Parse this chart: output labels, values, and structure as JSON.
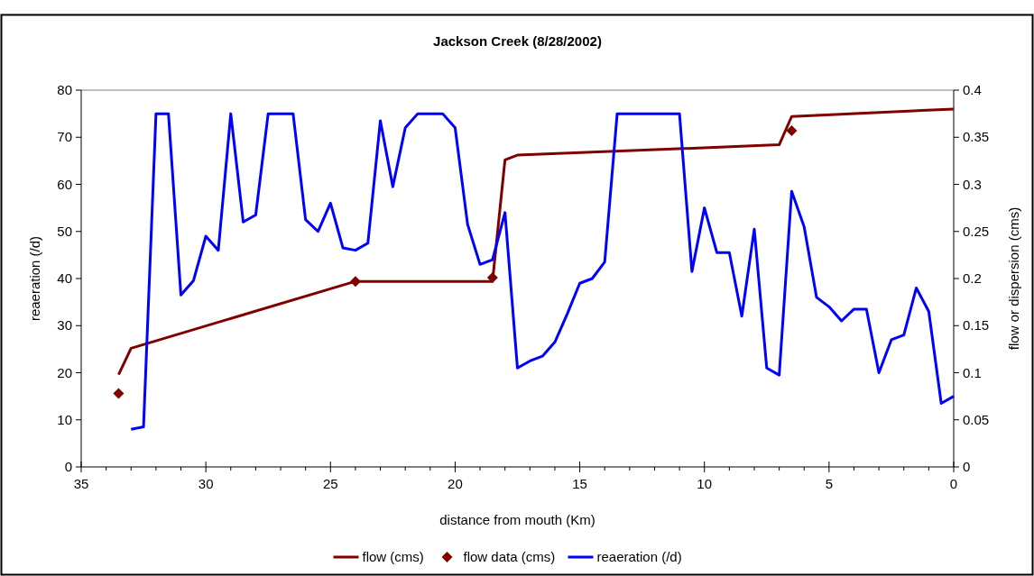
{
  "chart_data": {
    "type": "line",
    "title": "Jackson Creek (8/28/2002)",
    "xlabel": "distance from mouth (Km)",
    "ylabel": "reaeration (/d)",
    "y2label": "flow or dispersion (cms)",
    "xlim": [
      35,
      0
    ],
    "xticks": [
      35,
      {
        "value": 34,
        "label": null
      },
      {
        "value": 33,
        "label": null
      },
      {
        "value": 32,
        "label": null
      },
      {
        "value": 31,
        "label": null
      },
      30,
      {
        "value": 29,
        "label": null
      },
      {
        "value": 28,
        "label": null
      },
      {
        "value": 27,
        "label": null
      },
      {
        "value": 26,
        "label": null
      },
      25,
      {
        "value": 24,
        "label": null
      },
      {
        "value": 23,
        "label": null
      },
      {
        "value": 22,
        "label": null
      },
      {
        "value": 21,
        "label": null
      },
      20,
      {
        "value": 19,
        "label": null
      },
      {
        "value": 18,
        "label": null
      },
      {
        "value": 17,
        "label": null
      },
      {
        "value": 16,
        "label": null
      },
      15,
      {
        "value": 14,
        "label": null
      },
      {
        "value": 13,
        "label": null
      },
      {
        "value": 12,
        "label": null
      },
      {
        "value": 11,
        "label": null
      },
      10,
      {
        "value": 9,
        "label": null
      },
      {
        "value": 8,
        "label": null
      },
      {
        "value": 7,
        "label": null
      },
      {
        "value": 6,
        "label": null
      },
      5,
      {
        "value": 4,
        "label": null
      },
      {
        "value": 3,
        "label": null
      },
      {
        "value": 2,
        "label": null
      },
      {
        "value": 1,
        "label": null
      },
      0
    ],
    "ylim": [
      0,
      80
    ],
    "yticks": [
      0,
      10,
      20,
      30,
      40,
      50,
      60,
      70,
      80
    ],
    "y2lim": [
      0,
      0.4
    ],
    "y2ticks": [
      0,
      0.05,
      0.1,
      0.15,
      0.2,
      0.25,
      0.3,
      0.35,
      0.4
    ],
    "legend": "bottom",
    "series": [
      {
        "name": "flow (cms)",
        "axis": "y2",
        "color": "#800000",
        "marker": "none",
        "x": [
          33.5,
          33,
          24,
          18.5,
          18,
          17.5,
          7,
          6.5,
          0
        ],
        "values": [
          0.098,
          0.126,
          0.197,
          0.197,
          0.326,
          0.331,
          0.342,
          0.372,
          0.38
        ]
      },
      {
        "name": "flow data (cms)",
        "type": "scatter",
        "axis": "y2",
        "color": "#800000",
        "marker": "diamond",
        "x": [
          33.5,
          24,
          18.5,
          6.5
        ],
        "values": [
          0.078,
          0.197,
          0.201,
          0.357
        ]
      },
      {
        "name": "reaeration (/d)",
        "color": "#0000ff",
        "marker": "none",
        "x": [
          33,
          32.5,
          32,
          31.5,
          31,
          30.5,
          30,
          29.5,
          29,
          28.5,
          28,
          27.5,
          27,
          26.5,
          26,
          25.5,
          25,
          24.5,
          24,
          23.5,
          23,
          22.5,
          22,
          21.5,
          21,
          20.5,
          20,
          19.5,
          19,
          18.5,
          18,
          17.5,
          17,
          16.5,
          16,
          15.5,
          15,
          14.5,
          14,
          13.5,
          13,
          12.5,
          12,
          11.5,
          11,
          10.5,
          10,
          9.5,
          9,
          8.5,
          8,
          7.5,
          7,
          6.5,
          6,
          5.5,
          5,
          4.5,
          4,
          3.5,
          3,
          2.5,
          2,
          1.5,
          1,
          0.5,
          0
        ],
        "values": [
          8,
          8.5,
          75,
          75,
          36.5,
          39.5,
          49,
          46,
          75,
          52,
          53.5,
          75,
          75,
          75,
          52.5,
          50,
          56,
          46.5,
          46,
          47.5,
          73.5,
          59.5,
          72,
          75,
          75,
          75,
          72,
          51.5,
          43,
          44,
          54,
          21,
          22.5,
          23.5,
          26.5,
          32.5,
          39,
          40,
          43.5,
          75,
          75,
          75,
          75,
          75,
          75,
          41.5,
          55,
          45.5,
          45.5,
          32,
          50.5,
          21,
          19.5,
          58.5,
          51,
          36,
          34,
          31,
          33.5,
          33.5,
          20,
          27,
          28,
          38,
          33,
          13.5,
          15
        ]
      }
    ]
  }
}
